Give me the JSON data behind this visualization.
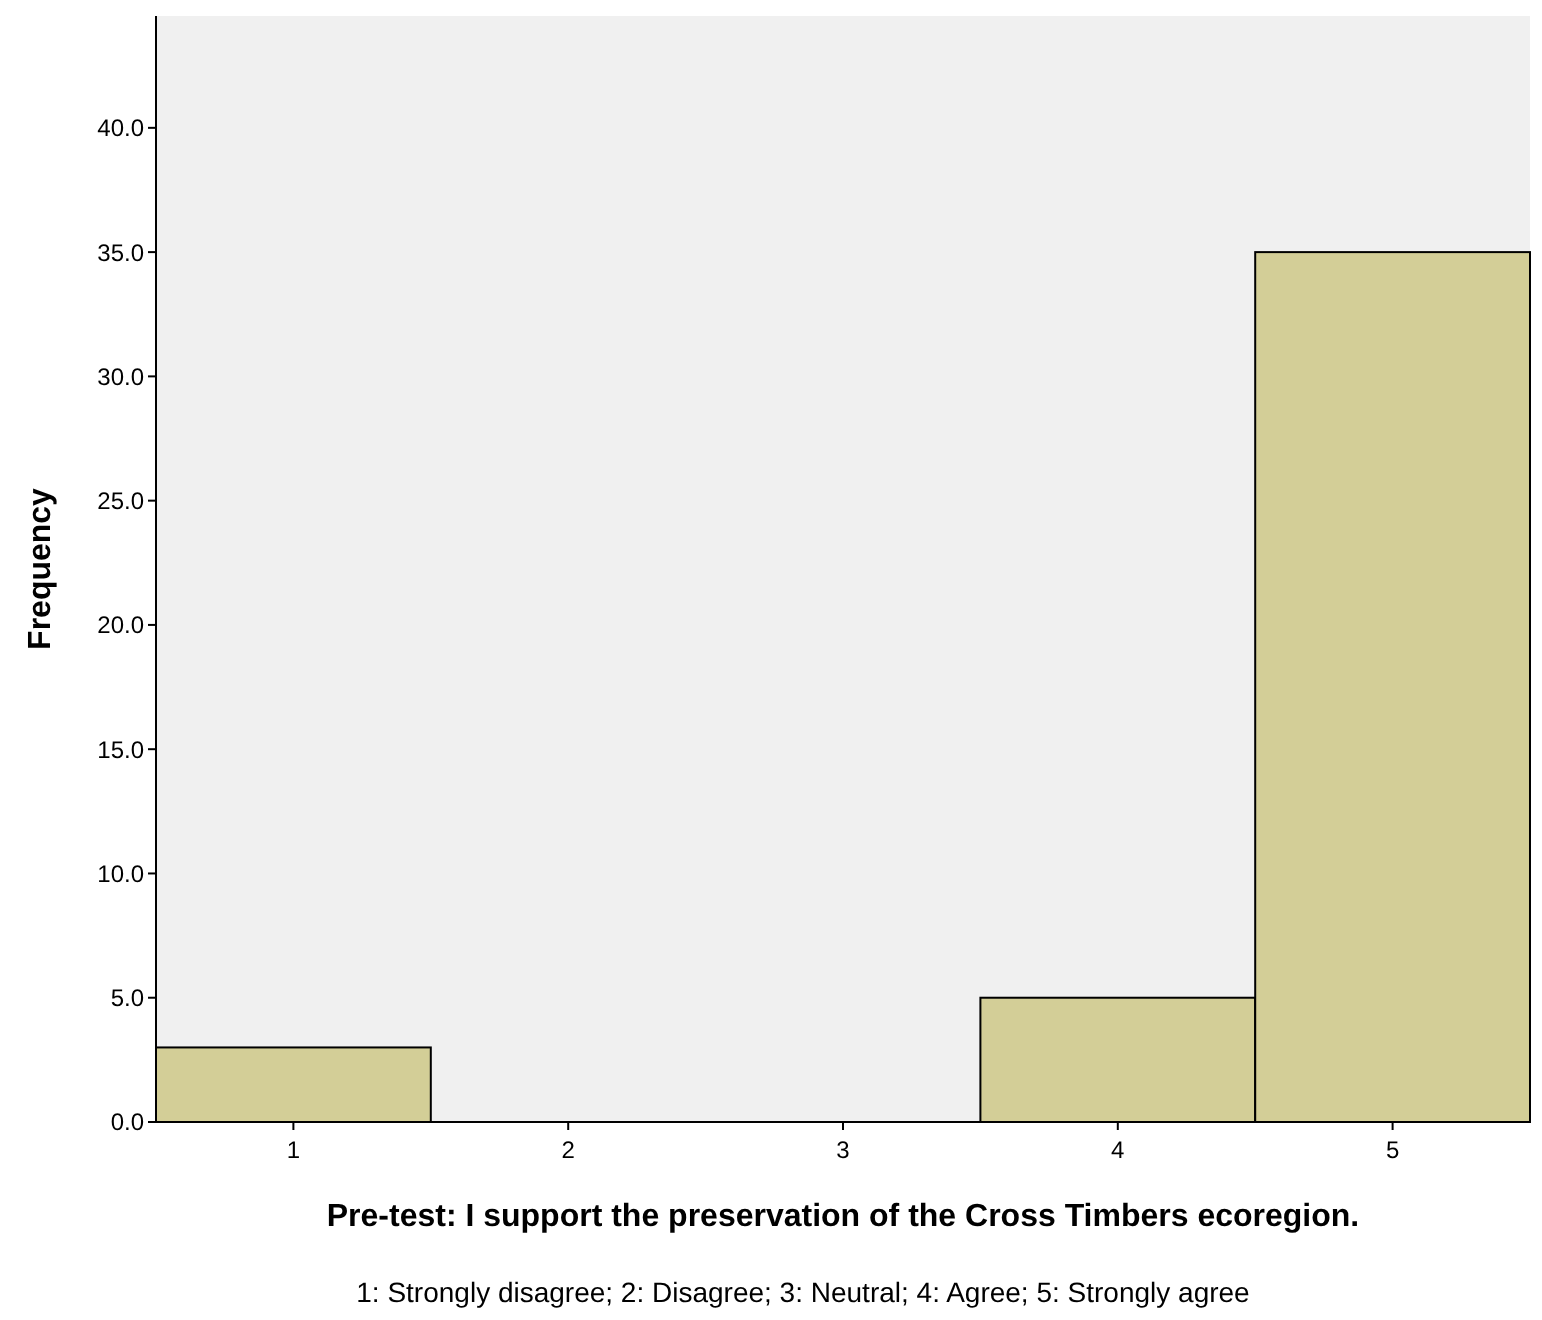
{
  "chart_data": {
    "type": "histogram",
    "xlabel": "Pre-test: I support the preservation of the Cross Timbers ecoregion.",
    "ylabel": "Frequency",
    "bins": [
      0.5,
      1.5,
      2.5,
      3.5,
      4.5,
      5.5
    ],
    "values": [
      3,
      0,
      0,
      5,
      35
    ],
    "color": "#d3ce97",
    "xlim": [
      0.5,
      5.5
    ],
    "xticks": [
      1,
      2,
      3,
      4,
      5
    ],
    "ylim": [
      0,
      44.5
    ],
    "yticks": [
      {
        "value": 0,
        "label": "0.0"
      },
      {
        "value": 5,
        "label": "5.0"
      },
      {
        "value": 10,
        "label": "10.0"
      },
      {
        "value": 15,
        "label": "15.0"
      },
      {
        "value": 20,
        "label": "20.0"
      },
      {
        "value": 25,
        "label": "25.0"
      },
      {
        "value": 30,
        "label": "30.0"
      },
      {
        "value": 35,
        "label": "35.0"
      },
      {
        "value": 40,
        "label": "40.0"
      }
    ],
    "grid": false,
    "annotations": [
      "1: Strongly disagree; 2: Disagree; 3: Neutral; 4: Agree; 5: Strongly agree"
    ]
  }
}
